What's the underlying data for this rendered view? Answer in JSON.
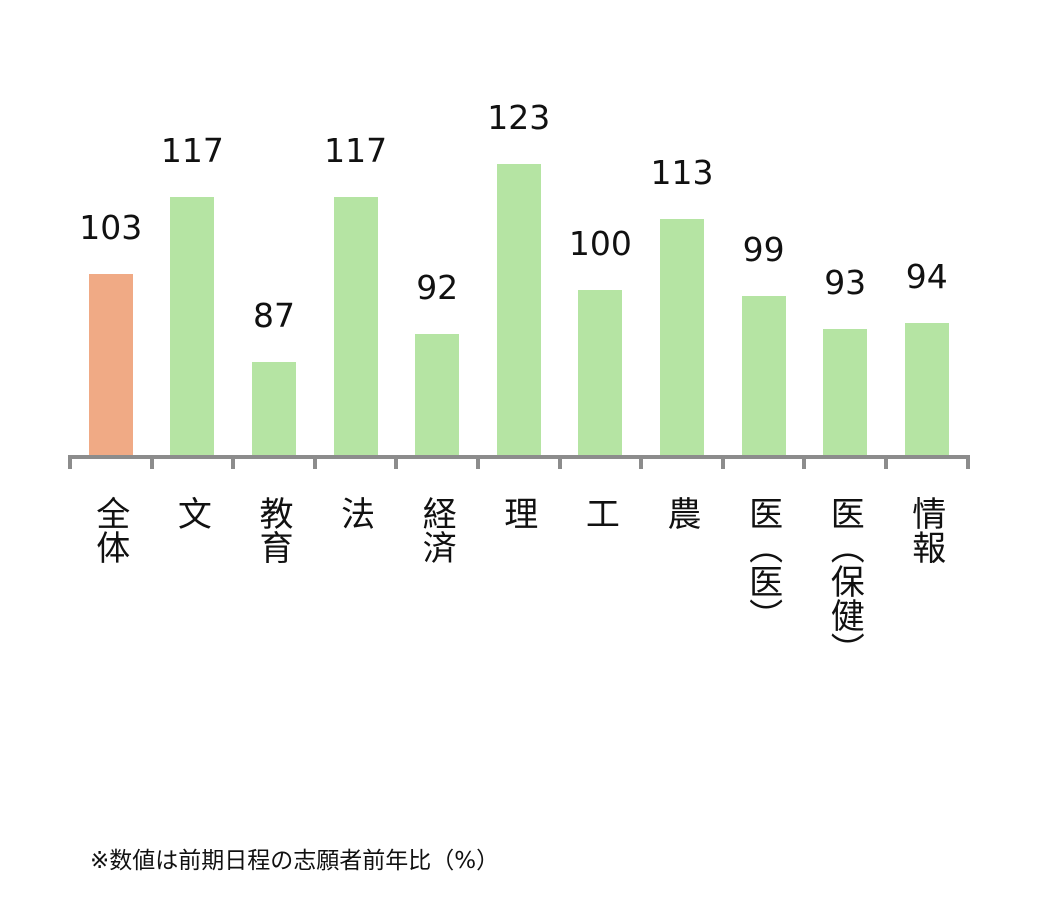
{
  "chart_data": {
    "type": "bar",
    "title": "",
    "xlabel": "",
    "ylabel": "",
    "categories": [
      "全体",
      "文",
      "教育",
      "法",
      "経済",
      "理",
      "工",
      "農",
      "医（医）",
      "医（保健）",
      "情報"
    ],
    "values": [
      103,
      117,
      87,
      117,
      92,
      123,
      100,
      113,
      99,
      93,
      94
    ],
    "colors": [
      "#f0aa85",
      "#b5e4a3",
      "#b5e4a3",
      "#b5e4a3",
      "#b5e4a3",
      "#b5e4a3",
      "#b5e4a3",
      "#b5e4a3",
      "#b5e4a3",
      "#b5e4a3",
      "#b5e4a3"
    ],
    "highlight_color": "#f0aa85",
    "bar_color": "#b5e4a3",
    "axis_color": "#8c8c8c",
    "grid": false,
    "legend": null,
    "data_labels": true,
    "note": "※数値は前期日程の志願者前年比（%）"
  },
  "footer": {
    "note": "※数値は前期日程の志願者前年比（%）"
  }
}
